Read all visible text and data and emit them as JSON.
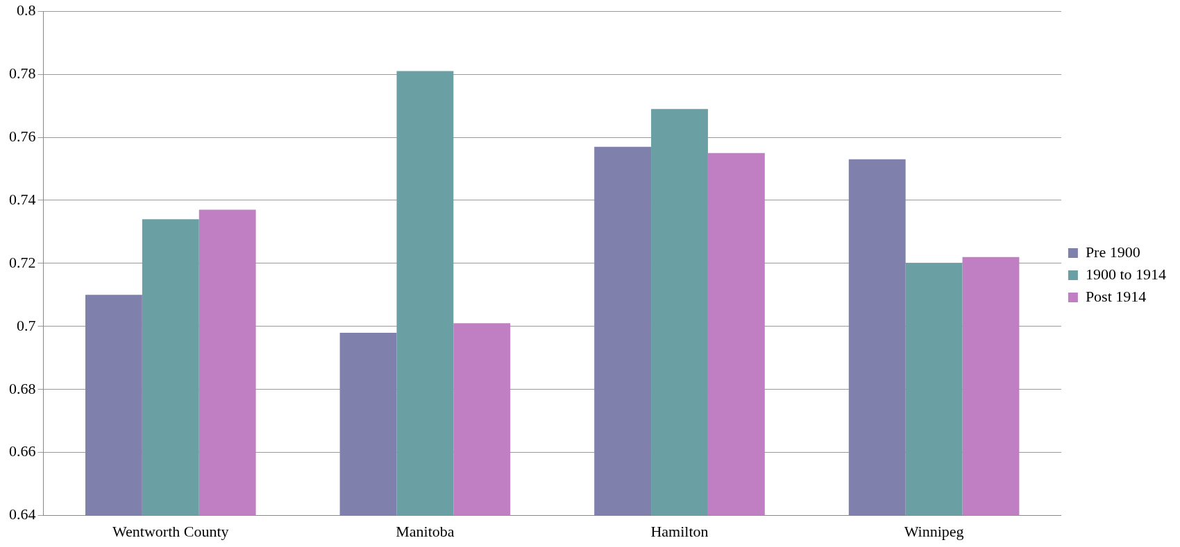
{
  "chart_data": {
    "type": "bar",
    "categories": [
      "Wentworth County",
      "Manitoba",
      "Hamilton",
      "Winnipeg"
    ],
    "series": [
      {
        "name": "Pre 1900",
        "color": "#7f80ab",
        "values": [
          0.71,
          0.698,
          0.757,
          0.753
        ]
      },
      {
        "name": "1900 to 1914",
        "color": "#6a9fa4",
        "values": [
          0.734,
          0.781,
          0.769,
          0.72
        ]
      },
      {
        "name": "Post 1914",
        "color": "#c07fc3",
        "values": [
          0.737,
          0.701,
          0.755,
          0.722
        ]
      }
    ],
    "ylim": [
      0.64,
      0.8
    ],
    "yticks": [
      0.64,
      0.66,
      0.68,
      0.7,
      0.72,
      0.74,
      0.76,
      0.78,
      0.8
    ],
    "grid": "y",
    "legend": "right"
  }
}
